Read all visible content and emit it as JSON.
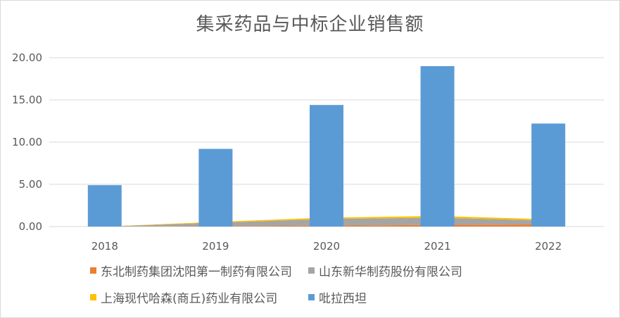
{
  "chart_data": {
    "type": "bar",
    "title": "集采药品与中标企业销售额",
    "categories": [
      "2018",
      "2019",
      "2020",
      "2021",
      "2022"
    ],
    "ylim": [
      0,
      20
    ],
    "yticks": [
      "0.00",
      "5.00",
      "10.00",
      "15.00",
      "20.00"
    ],
    "grid": true,
    "legend_position": "bottom",
    "series": [
      {
        "name": "东北制药集团沈阳第一制药有限公司",
        "mark": "area",
        "color": "#ED7D31",
        "values": [
          0.0,
          0.05,
          0.1,
          0.2,
          0.25
        ]
      },
      {
        "name": "山东新华制药股份有限公司",
        "mark": "area",
        "color": "#A5A5A5",
        "values": [
          0.0,
          0.4,
          0.8,
          0.85,
          0.45
        ]
      },
      {
        "name": "上海现代哈森(商丘)药业有限公司",
        "mark": "area",
        "color": "#FFC000",
        "values": [
          0.0,
          0.1,
          0.15,
          0.2,
          0.15
        ]
      },
      {
        "name": "吡拉西坦",
        "mark": "bar",
        "color": "#5B9BD5",
        "values": [
          4.9,
          9.2,
          14.4,
          19.0,
          12.2
        ]
      }
    ]
  }
}
